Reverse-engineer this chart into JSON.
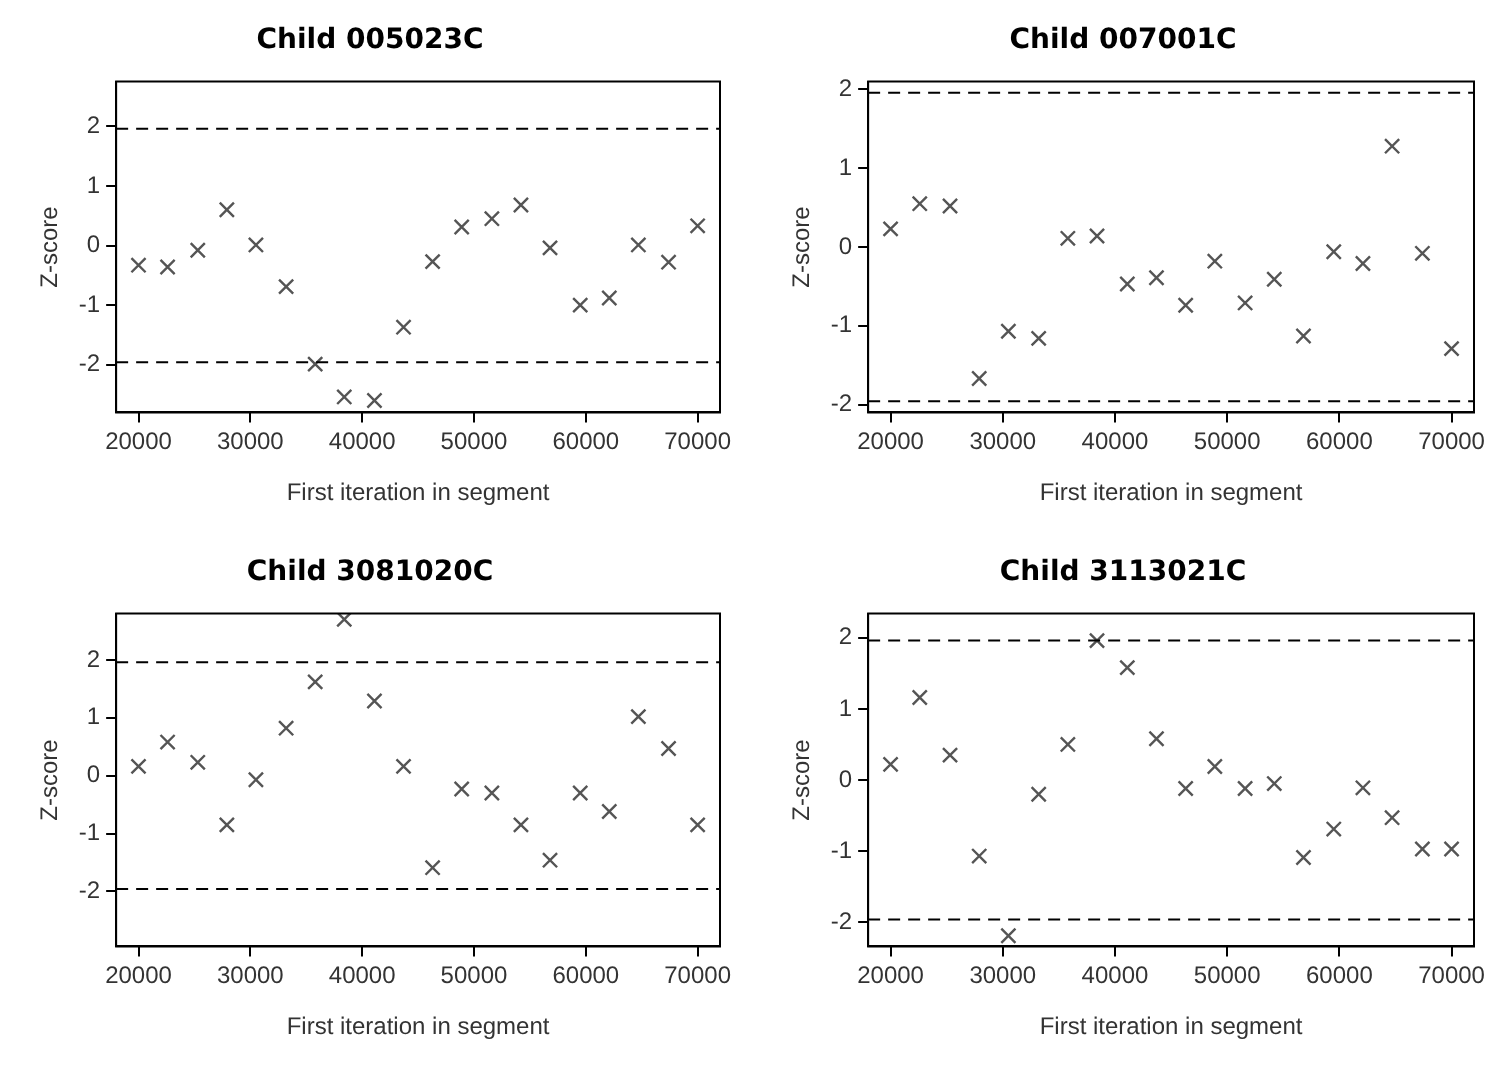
{
  "chart_data": [
    {
      "type": "scatter",
      "title": "Child 005023C",
      "xlabel": "First iteration in segment",
      "ylabel": "Z-score",
      "marker": "cross",
      "grid": false,
      "legend": false,
      "x": [
        20000,
        22600,
        25300,
        27900,
        30500,
        33200,
        35800,
        38400,
        41100,
        43700,
        46300,
        48900,
        51600,
        54200,
        56800,
        59500,
        62100,
        64700,
        67400,
        70000
      ],
      "series": [
        {
          "color": "#555555",
          "values": [
            -0.33,
            -0.36,
            -0.08,
            0.6,
            0.01,
            -0.69,
            -1.99,
            -2.54,
            -2.6,
            -1.37,
            -0.27,
            0.31,
            0.45,
            0.68,
            -0.04,
            -1.0,
            -0.88,
            0.01,
            -0.28,
            0.33
          ]
        }
      ],
      "xlim": [
        18000,
        72000
      ],
      "xticks": [
        20000,
        30000,
        40000,
        50000,
        60000,
        70000
      ],
      "ylim": [
        -2.8,
        2.75
      ],
      "yticks": [
        -2,
        -1,
        0,
        1,
        2
      ],
      "ref_lines": [
        {
          "axis": "y",
          "value": 1.96,
          "color": "#000000",
          "line_style": "dashed"
        },
        {
          "axis": "y",
          "value": -1.96,
          "color": "#000000",
          "line_style": "dashed"
        }
      ]
    },
    {
      "type": "scatter",
      "title": "Child 007001C",
      "xlabel": "First iteration in segment",
      "ylabel": "Z-score",
      "marker": "cross",
      "grid": false,
      "legend": false,
      "x": [
        20000,
        22600,
        25300,
        27900,
        30500,
        33200,
        35800,
        38400,
        41100,
        43700,
        46300,
        48900,
        51600,
        54200,
        56800,
        59500,
        62100,
        64700,
        67400,
        70000
      ],
      "series": [
        {
          "color": "#555555",
          "values": [
            0.23,
            0.55,
            0.52,
            -1.67,
            -1.07,
            -1.16,
            0.11,
            0.14,
            -0.47,
            -0.39,
            -0.74,
            -0.18,
            -0.71,
            -0.41,
            -1.13,
            -0.06,
            -0.21,
            1.28,
            -0.08,
            -1.29
          ]
        }
      ],
      "xlim": [
        18000,
        72000
      ],
      "xticks": [
        20000,
        30000,
        40000,
        50000,
        60000,
        70000
      ],
      "ylim": [
        -2.1,
        2.1
      ],
      "yticks": [
        -2,
        -1,
        0,
        1,
        2
      ],
      "ref_lines": [
        {
          "axis": "y",
          "value": 1.96,
          "color": "#000000",
          "line_style": "dashed"
        },
        {
          "axis": "y",
          "value": -1.96,
          "color": "#000000",
          "line_style": "dashed"
        }
      ]
    },
    {
      "type": "scatter",
      "title": "Child 3081020C",
      "xlabel": "First iteration in segment",
      "ylabel": "Z-score",
      "marker": "cross",
      "grid": false,
      "legend": false,
      "x": [
        20000,
        22600,
        25300,
        27900,
        30500,
        33200,
        35800,
        38400,
        41100,
        43700,
        46300,
        48900,
        51600,
        54200,
        56800,
        59500,
        62100,
        64700,
        67400,
        70000
      ],
      "series": [
        {
          "color": "#555555",
          "values": [
            0.16,
            0.58,
            0.23,
            -0.85,
            -0.07,
            0.82,
            1.62,
            2.7,
            1.29,
            0.16,
            -1.59,
            -0.23,
            -0.3,
            -0.85,
            -1.46,
            -0.3,
            -0.62,
            1.02,
            0.47,
            -0.85
          ]
        }
      ],
      "xlim": [
        18000,
        72000
      ],
      "xticks": [
        20000,
        30000,
        40000,
        50000,
        60000,
        70000
      ],
      "ylim": [
        -2.95,
        2.8
      ],
      "yticks": [
        -2,
        -1,
        0,
        1,
        2
      ],
      "ref_lines": [
        {
          "axis": "y",
          "value": 1.96,
          "color": "#000000",
          "line_style": "dashed"
        },
        {
          "axis": "y",
          "value": -1.96,
          "color": "#000000",
          "line_style": "dashed"
        }
      ]
    },
    {
      "type": "scatter",
      "title": "Child 3113021C",
      "xlabel": "First iteration in segment",
      "ylabel": "Z-score",
      "marker": "cross",
      "grid": false,
      "legend": false,
      "x": [
        20000,
        22600,
        25300,
        27900,
        30500,
        33200,
        35800,
        38400,
        41100,
        43700,
        46300,
        48900,
        51600,
        54200,
        56800,
        59500,
        62100,
        64700,
        67400,
        70000
      ],
      "series": [
        {
          "color": "#555555",
          "values": [
            0.22,
            1.16,
            0.35,
            -1.07,
            -2.19,
            -0.2,
            0.5,
            1.96,
            1.58,
            0.58,
            -0.12,
            0.19,
            -0.12,
            -0.05,
            -1.09,
            -0.69,
            -0.11,
            -0.53,
            -0.97,
            -0.97
          ]
        }
      ],
      "xlim": [
        18000,
        72000
      ],
      "xticks": [
        20000,
        30000,
        40000,
        50000,
        60000,
        70000
      ],
      "ylim": [
        -2.34,
        2.34
      ],
      "yticks": [
        -2,
        -1,
        0,
        1,
        2
      ],
      "ref_lines": [
        {
          "axis": "y",
          "value": 1.96,
          "color": "#000000",
          "line_style": "dashed"
        },
        {
          "axis": "y",
          "value": -1.96,
          "color": "#000000",
          "line_style": "dashed"
        }
      ]
    }
  ]
}
